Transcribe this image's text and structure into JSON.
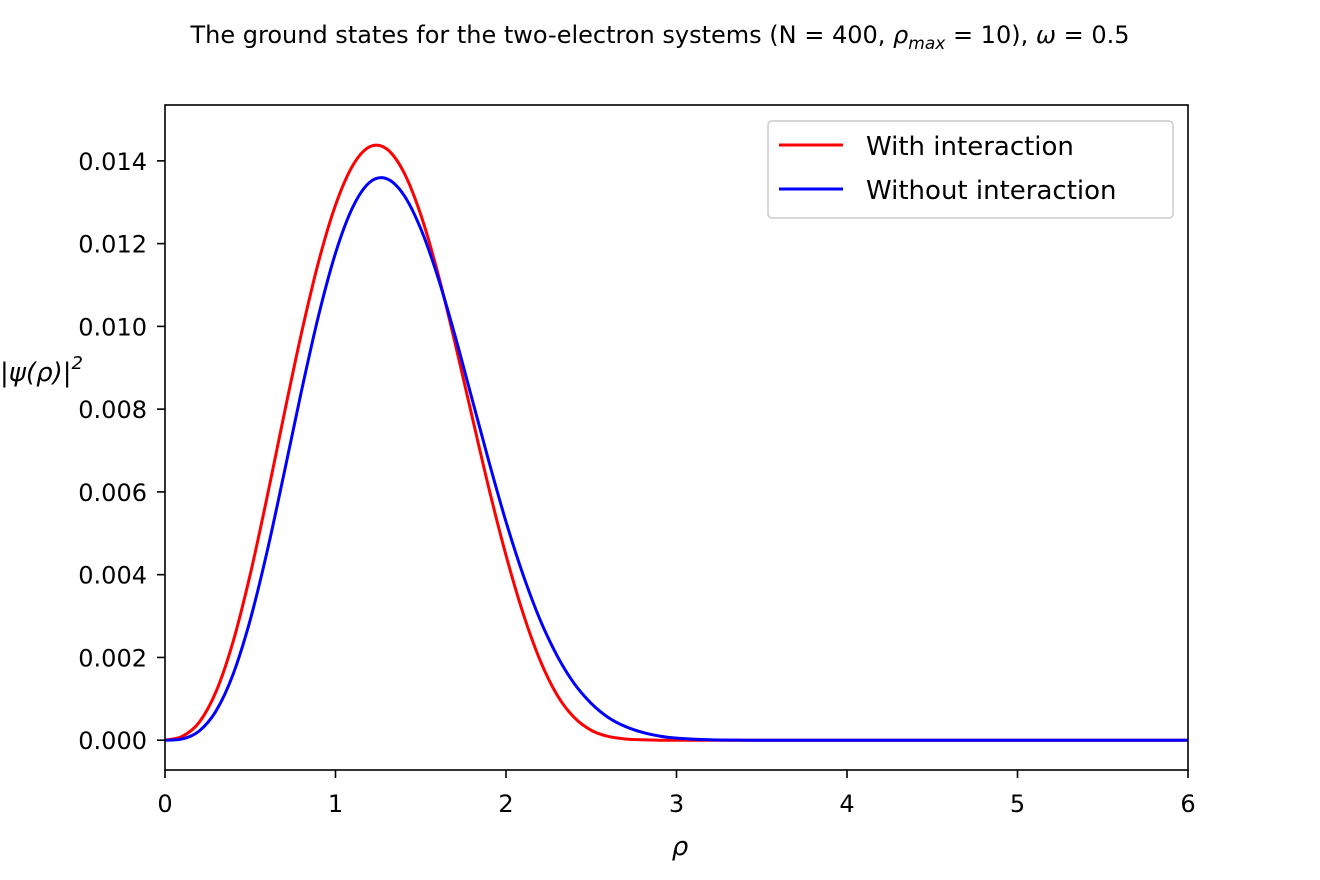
{
  "chart_data": {
    "type": "line",
    "title": {
      "prefix": "The ground states for the two-electron systems (N = 400, ",
      "rho": "ρ",
      "rho_sub": "max",
      "middle": " = 10), ",
      "omega": "ω",
      "suffix": " = 0.5"
    },
    "xlabel": "ρ",
    "ylabel": {
      "open": "|",
      "psi": "ψ",
      "inner": "(",
      "rho": "ρ",
      "close": ")|",
      "power": "2"
    },
    "xlim": [
      0,
      6
    ],
    "ylim": [
      -0.00072,
      0.01535
    ],
    "x_ticks": [
      {
        "value": 0,
        "label": "0"
      },
      {
        "value": 1,
        "label": "1"
      },
      {
        "value": 2,
        "label": "2"
      },
      {
        "value": 3,
        "label": "3"
      },
      {
        "value": 4,
        "label": "4"
      },
      {
        "value": 5,
        "label": "5"
      },
      {
        "value": 6,
        "label": "6"
      }
    ],
    "y_ticks": [
      {
        "value": 0.0,
        "label": "0.000"
      },
      {
        "value": 0.002,
        "label": "0.002"
      },
      {
        "value": 0.004,
        "label": "0.004"
      },
      {
        "value": 0.006,
        "label": "0.006"
      },
      {
        "value": 0.008,
        "label": "0.008"
      },
      {
        "value": 0.01,
        "label": "0.010"
      },
      {
        "value": 0.012,
        "label": "0.012"
      },
      {
        "value": 0.014,
        "label": "0.014"
      }
    ],
    "grid": false,
    "legend_position": "top-right",
    "x": [
      0.0,
      0.1,
      0.2,
      0.3,
      0.4,
      0.5,
      0.6,
      0.7,
      0.8,
      0.9,
      1.0,
      1.1,
      1.2,
      1.3,
      1.4,
      1.5,
      1.6,
      1.7,
      1.8,
      1.9,
      2.0,
      2.1,
      2.2,
      2.3,
      2.4,
      2.5,
      2.6,
      2.7,
      2.8,
      2.9,
      3.0,
      3.2,
      3.4,
      3.6,
      3.8,
      4.0,
      4.2,
      4.4,
      4.6,
      4.8,
      5.0,
      5.5,
      6.0
    ],
    "series": [
      {
        "name": "With interaction",
        "color": "#ff0000",
        "values": [
          0.0,
          9e-05,
          0.00043,
          0.00118,
          0.00239,
          0.00401,
          0.0059,
          0.0079,
          0.00983,
          0.01155,
          0.01293,
          0.01388,
          0.01434,
          0.01429,
          0.01373,
          0.0127,
          0.01129,
          0.00962,
          0.00784,
          0.00608,
          0.00447,
          0.00307,
          0.00193,
          0.00109,
          0.00055,
          0.00024,
          9e-05,
          3e-05,
          1e-05,
          0.0,
          0.0,
          0.0,
          0.0,
          0.0,
          0.0,
          0.0,
          0.0,
          0.0,
          0.0,
          0.0,
          0.0,
          0.0,
          0.0
        ]
      },
      {
        "name": "Without interaction",
        "color": "#0000ff",
        "values": [
          0.0,
          3e-05,
          0.00022,
          0.00071,
          0.0016,
          0.00291,
          0.00458,
          0.00648,
          0.00843,
          0.01025,
          0.01177,
          0.01287,
          0.01348,
          0.01357,
          0.01318,
          0.01236,
          0.0112,
          0.00979,
          0.00826,
          0.00673,
          0.00528,
          0.004,
          0.00291,
          0.00204,
          0.00137,
          0.00089,
          0.00055,
          0.00033,
          0.00019,
          0.0001,
          5e-05,
          1e-05,
          0.0,
          0.0,
          0.0,
          0.0,
          0.0,
          0.0,
          0.0,
          0.0,
          0.0,
          0.0,
          0.0
        ]
      }
    ]
  }
}
